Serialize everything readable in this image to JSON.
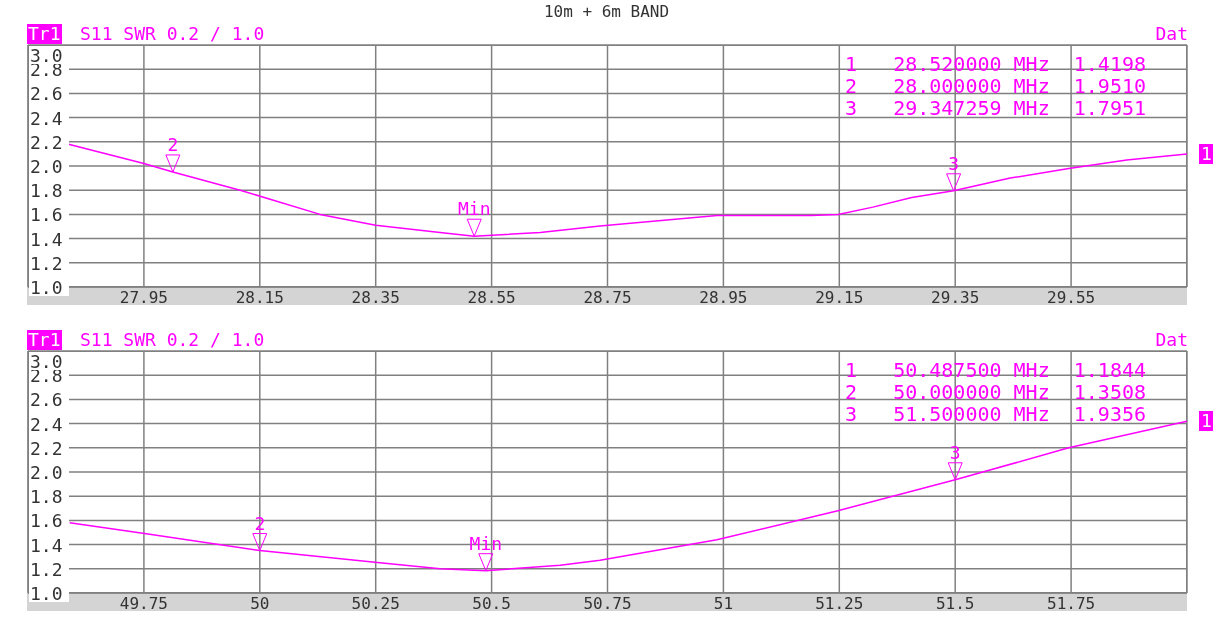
{
  "chart_data": [
    {
      "type": "line",
      "title": "10m + 6m BAND",
      "grid": true,
      "marker": "none",
      "line_style": "solid",
      "x": [
        27.82,
        27.95,
        28.0,
        28.116,
        28.254,
        28.35,
        28.461,
        28.52,
        28.634,
        28.737,
        28.939,
        29.101,
        29.148,
        29.208,
        29.275,
        29.347259,
        29.445,
        29.546,
        29.646,
        29.75
      ],
      "series": [
        {
          "color": "#ff00ff",
          "values": [
            2.18,
            2.02,
            1.951,
            1.8,
            1.6,
            1.51,
            1.45,
            1.4198,
            1.45,
            1.505,
            1.59,
            1.59,
            1.6,
            1.66,
            1.74,
            1.7951,
            1.9,
            1.98,
            2.05,
            2.1
          ]
        }
      ],
      "xlim": [
        27.75,
        29.75
      ],
      "xticks": [
        27.95,
        28.15,
        28.35,
        28.55,
        28.75,
        28.95,
        29.15,
        29.35,
        29.55
      ],
      "ylim": [
        1.0,
        3.0
      ],
      "yticks": [
        {
          "value": 1,
          "label": "1.0"
        },
        1.2,
        1.4,
        1.6,
        1.8,
        {
          "value": 2,
          "label": "2.0"
        },
        2.2,
        2.4,
        2.6,
        2.8,
        {
          "value": 3,
          "label": "3.0"
        }
      ],
      "annotations": [
        "Tr1",
        "S11 SWR 0.2 / 1.0",
        "Dat",
        "1   28.520000 MHz  1.4198",
        "2   28.000000 MHz  1.9510",
        "3   29.347259 MHz  1.7951",
        "1",
        {
          "text": "2",
          "x": 28.0,
          "y": 1.951
        },
        {
          "text": "Min",
          "x": 28.52,
          "y": 1.4198
        },
        {
          "text": "3",
          "x": 29.347259,
          "y": 1.7951
        }
      ]
    },
    {
      "type": "line",
      "grid": true,
      "marker": "none",
      "line_style": "solid",
      "x": [
        49.59,
        49.755,
        50.0,
        50.259,
        50.389,
        50.4875,
        50.648,
        50.734,
        50.986,
        51.247,
        51.5,
        51.745,
        52.0
      ],
      "series": [
        {
          "color": "#ff00ff",
          "values": [
            1.58,
            1.49,
            1.3508,
            1.25,
            1.2,
            1.1844,
            1.23,
            1.27,
            1.44,
            1.68,
            1.9356,
            2.2,
            2.42
          ]
        }
      ],
      "xlim": [
        49.5,
        52.0
      ],
      "xticks": [
        49.75,
        50,
        50.25,
        50.5,
        50.75,
        51,
        51.25,
        51.5,
        51.75
      ],
      "ylim": [
        1.0,
        3.0
      ],
      "yticks": [
        {
          "value": 1,
          "label": "1.0"
        },
        1.2,
        1.4,
        1.6,
        1.8,
        {
          "value": 2,
          "label": "2.0"
        },
        2.2,
        2.4,
        2.6,
        2.8,
        {
          "value": 3,
          "label": "3.0"
        }
      ],
      "annotations": [
        "Tr1",
        "S11 SWR 0.2 / 1.0",
        "Dat",
        "1   50.487500 MHz  1.1844",
        "2   50.000000 MHz  1.3508",
        "3   51.500000 MHz  1.9356",
        "1",
        {
          "text": "2",
          "x": 50.0,
          "y": 1.3508
        },
        {
          "text": "Min",
          "x": 50.4875,
          "y": 1.1844
        },
        {
          "text": "3",
          "x": 51.5,
          "y": 1.9356
        }
      ]
    }
  ]
}
